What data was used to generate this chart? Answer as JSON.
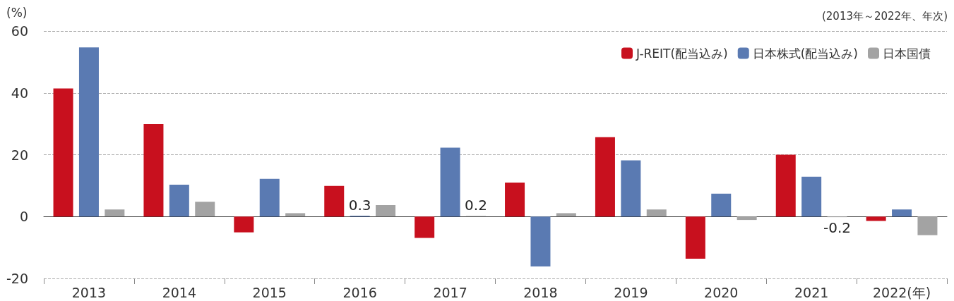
{
  "chart_data": {
    "type": "bar",
    "ylabel": "(%)",
    "annotations": [
      "(2013年～2022年、年次)"
    ],
    "categories": [
      "2013",
      "2014",
      "2015",
      "2016",
      "2017",
      "2018",
      "2019",
      "2020",
      "2021",
      "2022(年)"
    ],
    "series": [
      {
        "name": "J-REIT(配当込み)",
        "color": "#c8101e",
        "values": [
          41.4,
          29.9,
          -5.1,
          9.9,
          -6.9,
          11.0,
          25.7,
          -13.6,
          20.0,
          -1.4
        ]
      },
      {
        "name": "日本株式(配当込み)",
        "color": "#5a7ab2",
        "values": [
          54.7,
          10.3,
          12.2,
          0.3,
          22.3,
          -16.1,
          18.2,
          7.4,
          12.9,
          2.3
        ],
        "value_labels": [
          null,
          null,
          null,
          "0.3",
          null,
          null,
          null,
          null,
          null,
          null
        ]
      },
      {
        "name": "日本国債",
        "color": "#a3a3a3",
        "values": [
          2.3,
          4.8,
          1.1,
          3.7,
          0.2,
          1.1,
          2.3,
          -1.1,
          -0.2,
          -6.0
        ],
        "value_labels": [
          null,
          null,
          null,
          null,
          "0.2",
          null,
          null,
          null,
          "-0.2",
          null
        ]
      }
    ],
    "ylim": [
      -20,
      60
    ],
    "yticks": [
      -20,
      0,
      20,
      40,
      60
    ],
    "grid": "y",
    "legend": "top right"
  }
}
